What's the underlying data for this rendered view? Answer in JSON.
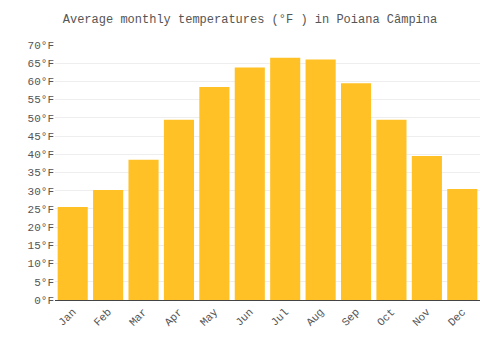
{
  "chart_data": {
    "type": "bar",
    "title": "Average monthly temperatures (°F ) in Poiana Câmpina",
    "categories": [
      "Jan",
      "Feb",
      "Mar",
      "Apr",
      "May",
      "Jun",
      "Jul",
      "Aug",
      "Sep",
      "Oct",
      "Nov",
      "Dec"
    ],
    "values": [
      25.5,
      30.2,
      38.5,
      49.5,
      58.5,
      63.8,
      66.5,
      66.0,
      59.5,
      49.5,
      39.5,
      30.5
    ],
    "color": "#FFC125",
    "ylim": [
      0,
      70
    ],
    "yticks": [
      {
        "value": 0,
        "label": "0°F"
      },
      {
        "value": 5,
        "label": "5°F"
      },
      {
        "value": 10,
        "label": "10°F"
      },
      {
        "value": 15,
        "label": "15°F"
      },
      {
        "value": 20,
        "label": "20°F"
      },
      {
        "value": 25,
        "label": "25°F"
      },
      {
        "value": 30,
        "label": "30°F"
      },
      {
        "value": 35,
        "label": "35°F"
      },
      {
        "value": 40,
        "label": "40°F"
      },
      {
        "value": 45,
        "label": "45°F"
      },
      {
        "value": 50,
        "label": "50°F"
      },
      {
        "value": 55,
        "label": "55°F"
      },
      {
        "value": 60,
        "label": "60°F"
      },
      {
        "value": 65,
        "label": "65°F"
      },
      {
        "value": 70,
        "label": "70°F"
      }
    ],
    "grid": true
  }
}
